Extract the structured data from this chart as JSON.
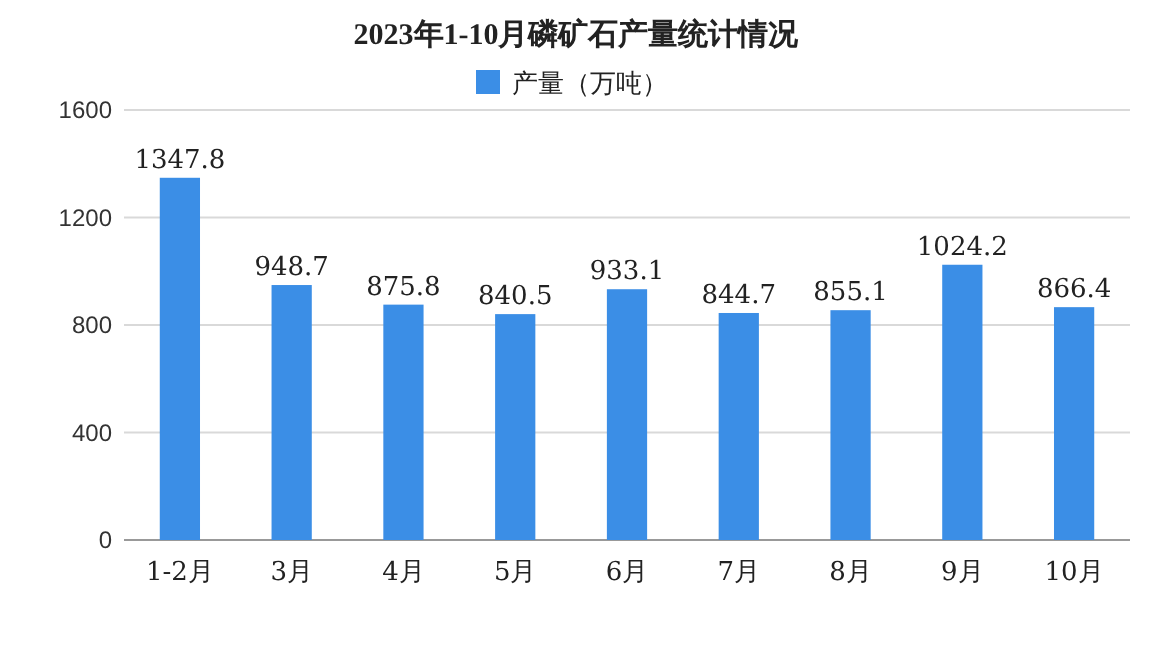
{
  "chart_data": {
    "type": "bar",
    "title": "2023年1-10月磷矿石产量统计情况",
    "categories": [
      "1-2月",
      "3月",
      "4月",
      "5月",
      "6月",
      "7月",
      "8月",
      "9月",
      "10月"
    ],
    "series": [
      {
        "name": "产量（万吨）",
        "color": "#3b8ee6",
        "values": [
          1347.8,
          948.7,
          875.8,
          840.5,
          933.1,
          844.7,
          855.1,
          1024.2,
          866.4
        ]
      }
    ],
    "ylim": [
      0,
      1600
    ],
    "yticks": [
      0,
      400,
      800,
      1200,
      1600
    ],
    "grid": "y",
    "legend": "top",
    "data_labels": true
  }
}
